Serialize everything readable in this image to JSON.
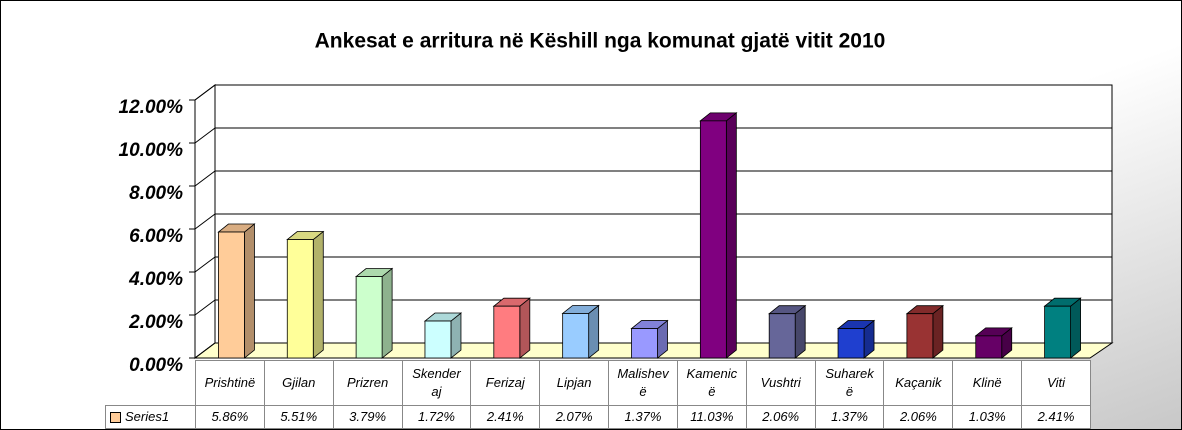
{
  "chart_data": {
    "type": "bar3d",
    "title": "Ankesat e arritura në Këshill nga komunat gjatë vitit 2010",
    "categories": [
      "Prishtinë",
      "Gjilan",
      "Prizren",
      "Skenderaj",
      "Ferizaj",
      "Lipjan",
      "Malishevë",
      "Kamenicë",
      "Vushtri",
      "Suharekë",
      "Kaçanik",
      "Klinë",
      "Viti"
    ],
    "series": [
      {
        "name": "Series1",
        "color": "#ffcc99",
        "colors": [
          "#ffcc99",
          "#ffff99",
          "#ccffcc",
          "#ccffff",
          "#ff7c80",
          "#99ccff",
          "#9999ff",
          "#800080",
          "#666699",
          "#1f3fcf",
          "#993333",
          "#660066",
          "#008080"
        ],
        "values": [
          5.86,
          5.51,
          3.79,
          1.72,
          2.41,
          2.07,
          1.37,
          11.03,
          2.06,
          1.37,
          2.06,
          1.03,
          2.41
        ],
        "value_labels": [
          "5.86%",
          "5.51%",
          "3.79%",
          "1.72%",
          "2.41%",
          "2.07%",
          "1.37%",
          "11.03%",
          "2.06%",
          "1.37%",
          "2.06%",
          "1.03%",
          "2.41%"
        ]
      }
    ],
    "ylim": [
      0,
      12
    ],
    "yticks": [
      {
        "value": 0,
        "label": "0.00%"
      },
      {
        "value": 2,
        "label": "2.00%"
      },
      {
        "value": 4,
        "label": "4.00%"
      },
      {
        "value": 6,
        "label": "6.00%"
      },
      {
        "value": 8,
        "label": "8.00%"
      },
      {
        "value": 10,
        "label": "10.00%"
      },
      {
        "value": 12,
        "label": "12.00%"
      }
    ],
    "grid": true,
    "data_table": true
  }
}
